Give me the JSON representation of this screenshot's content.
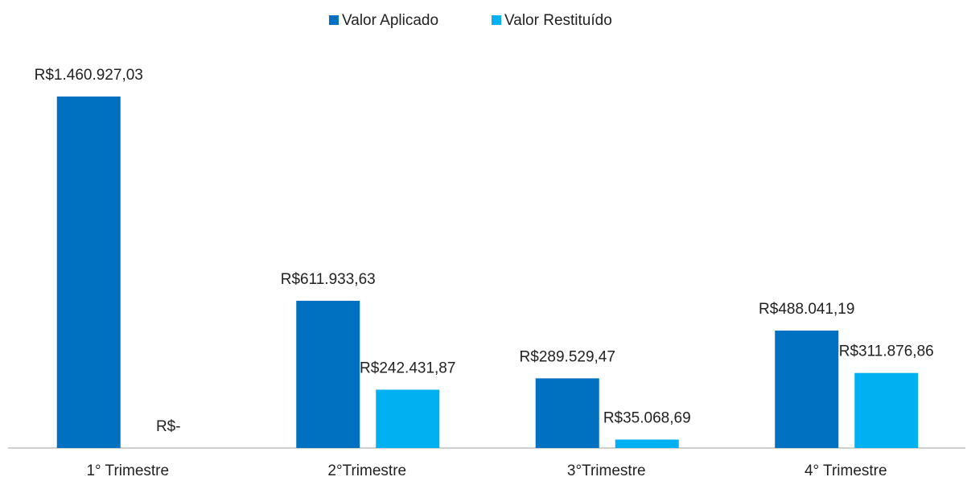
{
  "chart_data": {
    "type": "bar",
    "categories": [
      "1° Trimestre",
      "2°Trimestre",
      "3°Trimestre",
      "4° Trimestre"
    ],
    "series": [
      {
        "name": "Valor Aplicado",
        "color": "#0070c0",
        "values": [
          1460927.03,
          611933.63,
          289529.47,
          488041.19
        ],
        "value_labels": [
          "R$1.460.927,03",
          "R$611.933,63",
          "R$289.529,47",
          "R$488.041,19"
        ]
      },
      {
        "name": "Valor Restituído",
        "color": "#00b0f0",
        "values": [
          0,
          242431.87,
          35068.69,
          311876.86
        ],
        "value_labels": [
          "R$-",
          "R$242.431,87",
          "R$35.068,69",
          "R$311.876,86"
        ]
      }
    ],
    "legend": "top"
  }
}
